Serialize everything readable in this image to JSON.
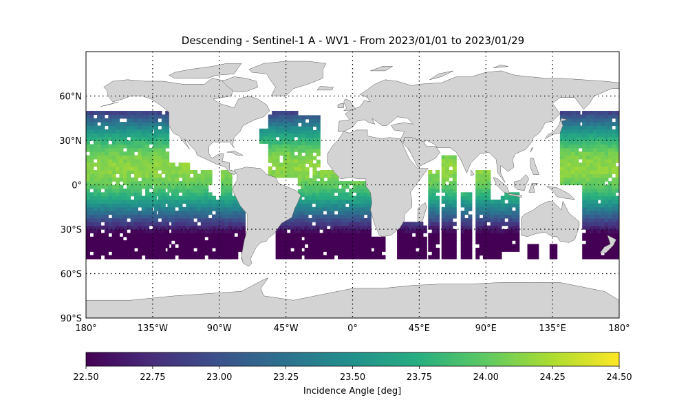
{
  "title": "Descending - Sentinel-1 A - WV1 - From 2023/01/01 to 2023/01/29",
  "map": {
    "projection": "equirectangular",
    "lon_range": [
      -180,
      180
    ],
    "lat_range": [
      -90,
      90
    ],
    "land_color": "#d3d3d3",
    "coastline_color": "#555555",
    "gridlines": "dotted",
    "lat_ticks": [
      {
        "lat": 60,
        "label": "60°N"
      },
      {
        "lat": 30,
        "label": "30°N"
      },
      {
        "lat": 0,
        "label": "0°"
      },
      {
        "lat": -30,
        "label": "30°S"
      },
      {
        "lat": -60,
        "label": "60°S"
      },
      {
        "lat": -90,
        "label": "90°S"
      }
    ],
    "lon_ticks": [
      {
        "lon": -180,
        "label": "180°"
      },
      {
        "lon": -135,
        "label": "135°W"
      },
      {
        "lon": -90,
        "label": "90°W"
      },
      {
        "lon": -45,
        "label": "45°W"
      },
      {
        "lon": 0,
        "label": "0°"
      },
      {
        "lon": 45,
        "label": "45°E"
      },
      {
        "lon": 90,
        "label": "90°E"
      },
      {
        "lon": 135,
        "label": "135°E"
      },
      {
        "lon": 180,
        "label": "180°"
      }
    ],
    "data_extent": {
      "lat_min": -50,
      "lat_max": 50
    },
    "swaths": [
      {
        "lon_min": -180,
        "lon_max": -134,
        "lat_min": -50,
        "lat_max": 50
      },
      {
        "lon_min": -134,
        "lon_max": -125,
        "lat_min": -50,
        "lat_max": 48
      },
      {
        "lon_min": -125,
        "lon_max": -110,
        "lat_min": -50,
        "lat_max": 15
      },
      {
        "lon_min": -110,
        "lon_max": -95,
        "lat_min": -50,
        "lat_max": 8
      },
      {
        "lon_min": -95,
        "lon_max": -82,
        "lat_min": -50,
        "lat_max": -8
      },
      {
        "lon_min": -89,
        "lon_max": -82,
        "lat_min": -50,
        "lat_max": 8
      },
      {
        "lon_min": -80,
        "lon_max": -73,
        "lat_min": -50,
        "lat_max": -5
      },
      {
        "lon_min": -63,
        "lon_max": -57,
        "lat_min": 28,
        "lat_max": 38
      },
      {
        "lon_min": -57,
        "lon_max": -37,
        "lat_min": 5,
        "lat_max": 50
      },
      {
        "lon_min": -37,
        "lon_max": -22,
        "lat_min": -8,
        "lat_max": 45
      },
      {
        "lon_min": -22,
        "lon_max": -10,
        "lat_min": -5,
        "lat_max": 10
      },
      {
        "lon_min": -52,
        "lon_max": -35,
        "lat_min": -50,
        "lat_max": -5
      },
      {
        "lon_min": -35,
        "lon_max": 12,
        "lat_min": -50,
        "lat_max": 2
      },
      {
        "lon_min": 12,
        "lon_max": 22,
        "lat_min": -50,
        "lat_max": -35
      },
      {
        "lon_min": 30,
        "lon_max": 50,
        "lat_min": -50,
        "lat_max": -27
      },
      {
        "lon_min": 51,
        "lon_max": 57,
        "lat_min": -50,
        "lat_max": 8
      },
      {
        "lon_min": 60,
        "lon_max": 68,
        "lat_min": -50,
        "lat_max": 20
      },
      {
        "lon_min": 73,
        "lon_max": 80,
        "lat_min": -50,
        "lat_max": -5
      },
      {
        "lon_min": 83,
        "lon_max": 92,
        "lat_min": -50,
        "lat_max": 10
      },
      {
        "lon_min": 93,
        "lon_max": 100,
        "lat_min": -50,
        "lat_max": -10
      },
      {
        "lon_min": 100,
        "lon_max": 112,
        "lat_min": -45,
        "lat_max": -5
      },
      {
        "lon_min": 118,
        "lon_max": 125,
        "lat_min": -50,
        "lat_max": -40
      },
      {
        "lon_min": 133,
        "lon_max": 137,
        "lat_min": -50,
        "lat_max": -40
      },
      {
        "lon_min": 140,
        "lon_max": 170,
        "lat_min": 0,
        "lat_max": 48
      },
      {
        "lon_min": 146,
        "lon_max": 152,
        "lat_min": 25,
        "lat_max": 48
      },
      {
        "lon_min": 155,
        "lon_max": 180,
        "lat_min": -50,
        "lat_max": 50
      },
      {
        "lon_min": 158,
        "lon_max": 165,
        "lat_min": -30,
        "lat_max": 0
      },
      {
        "lon_min": 170,
        "lon_max": 180,
        "lat_min": -50,
        "lat_max": -20
      }
    ]
  },
  "colorbar": {
    "label": "Incidence Angle [deg]",
    "range": [
      22.5,
      24.5
    ],
    "colormap": "viridis",
    "ticks": [
      {
        "value": 22.5,
        "label": "22.50"
      },
      {
        "value": 22.75,
        "label": "22.75"
      },
      {
        "value": 23.0,
        "label": "23.00"
      },
      {
        "value": 23.25,
        "label": "23.25"
      },
      {
        "value": 23.5,
        "label": "23.50"
      },
      {
        "value": 23.75,
        "label": "23.75"
      },
      {
        "value": 24.0,
        "label": "24.00"
      },
      {
        "value": 24.25,
        "label": "24.25"
      },
      {
        "value": 24.5,
        "label": "24.50"
      }
    ]
  }
}
